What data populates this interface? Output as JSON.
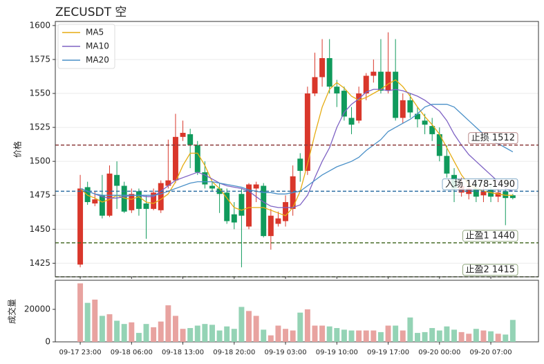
{
  "chart_data": [
    {
      "type": "candlestick",
      "title": "ZECUSDT  空",
      "ylabel": "价格",
      "categories": [
        "09-17 23:00",
        null,
        null,
        null,
        null,
        null,
        null,
        "09-18 06:00",
        null,
        null,
        null,
        null,
        null,
        null,
        "09-18 13:00",
        null,
        null,
        null,
        null,
        null,
        null,
        "09-18 20:00",
        null,
        null,
        null,
        null,
        null,
        null,
        "09-19 03:00",
        null,
        null,
        null,
        null,
        null,
        null,
        "09-19 10:00",
        null,
        null,
        null,
        null,
        null,
        null,
        "09-19 17:00",
        null,
        null,
        null,
        null,
        null,
        null,
        "09-20 00:00",
        null,
        null,
        null,
        null,
        null,
        null,
        "09-20 07:00",
        null,
        null,
        null
      ],
      "open": [
        1424,
        1481,
        1469,
        1475,
        1460,
        1490,
        1482,
        1464,
        1478,
        1469,
        1465,
        1464,
        1482,
        1486,
        1518,
        1520,
        1512,
        1492,
        1482,
        1480,
        1477,
        1461,
        1476,
        1452,
        1480,
        1482,
        1445,
        1454,
        1456,
        1465,
        1502,
        1493,
        1550,
        1562,
        1576,
        1555,
        1552,
        1532,
        1530,
        1550,
        1563,
        1566,
        1552,
        1566,
        1532,
        1545,
        1535,
        1530,
        1526,
        1520,
        1504,
        1490,
        1477,
        1476,
        1480,
        1475,
        1479,
        1474,
        1478,
        1475
      ],
      "high": [
        1490,
        1485,
        1478,
        1490,
        1497,
        1500,
        1485,
        1480,
        1480,
        1475,
        1480,
        1486,
        1516,
        1535,
        1530,
        1524,
        1515,
        1500,
        1485,
        1484,
        1480,
        1470,
        1480,
        1484,
        1485,
        1484,
        1465,
        1463,
        1475,
        1497,
        1506,
        1555,
        1580,
        1590,
        1590,
        1560,
        1555,
        1540,
        1555,
        1565,
        1575,
        1590,
        1595,
        1590,
        1550,
        1550,
        1540,
        1535,
        1532,
        1525,
        1512,
        1495,
        1488,
        1485,
        1485,
        1482,
        1484,
        1480,
        1480,
        1476
      ],
      "low": [
        1422,
        1468,
        1467,
        1458,
        1459,
        1465,
        1462,
        1462,
        1460,
        1443,
        1464,
        1462,
        1480,
        1484,
        1515,
        1495,
        1490,
        1480,
        1478,
        1462,
        1454,
        1450,
        1422,
        1450,
        1470,
        1444,
        1435,
        1452,
        1452,
        1460,
        1485,
        1490,
        1548,
        1555,
        1550,
        1540,
        1530,
        1520,
        1528,
        1545,
        1558,
        1550,
        1550,
        1530,
        1528,
        1532,
        1525,
        1520,
        1515,
        1500,
        1488,
        1470,
        1474,
        1472,
        1470,
        1470,
        1470,
        1470,
        1453,
        1472
      ],
      "close": [
        1480,
        1470,
        1472,
        1460,
        1491,
        1482,
        1463,
        1476,
        1465,
        1465,
        1477,
        1484,
        1486,
        1518,
        1521,
        1512,
        1492,
        1483,
        1480,
        1476,
        1456,
        1455,
        1460,
        1483,
        1483,
        1445,
        1460,
        1458,
        1470,
        1489,
        1493,
        1550,
        1562,
        1576,
        1555,
        1550,
        1533,
        1527,
        1550,
        1563,
        1566,
        1552,
        1566,
        1532,
        1545,
        1536,
        1531,
        1527,
        1520,
        1504,
        1491,
        1480,
        1482,
        1480,
        1474,
        1478,
        1474,
        1477,
        1473,
        1473
      ],
      "up_color": "#d9372b",
      "down_color": "#109a5c",
      "series": [
        {
          "name": "MA5",
          "color": "#e6ac12",
          "values": [
            1480,
            1475,
            1473,
            1470,
            1472,
            1475,
            1473,
            1472,
            1474,
            1470,
            1469,
            1472,
            1476,
            1485,
            1497,
            1506,
            1506,
            1497,
            1485,
            1480,
            1473,
            1466,
            1464,
            1466,
            1466,
            1466,
            1464,
            1462,
            1460,
            1466,
            1478,
            1498,
            1520,
            1540,
            1553,
            1558,
            1554,
            1548,
            1545,
            1547,
            1550,
            1553,
            1557,
            1560,
            1555,
            1548,
            1540,
            1533,
            1527,
            1520,
            1510,
            1500,
            1490,
            1483,
            1480,
            1478,
            1477,
            1476,
            1475,
            1475
          ]
        },
        {
          "name": "MA10",
          "color": "#7e62c4",
          "values": [
            1480,
            1478,
            1476,
            1474,
            1473,
            1473,
            1474,
            1475,
            1475,
            1474,
            1474,
            1478,
            1482,
            1486,
            1488,
            1490,
            1492,
            1490,
            1487,
            1484,
            1482,
            1481,
            1480,
            1478,
            1474,
            1470,
            1467,
            1466,
            1466,
            1466,
            1468,
            1475,
            1488,
            1500,
            1510,
            1525,
            1536,
            1542,
            1546,
            1551,
            1553,
            1553,
            1552,
            1553,
            1552,
            1550,
            1548,
            1545,
            1541,
            1537,
            1530,
            1520,
            1512,
            1505,
            1500,
            1495,
            1490,
            1485,
            1480,
            1478
          ]
        },
        {
          "name": "MA20",
          "color": "#4a90c8",
          "values": [
            1480,
            1478,
            1476,
            1475,
            1475,
            1475,
            1475,
            1475,
            1475,
            1475,
            1475,
            1476,
            1478,
            1480,
            1482,
            1484,
            1485,
            1485,
            1485,
            1484,
            1483,
            1482,
            1481,
            1479,
            1478,
            1477,
            1477,
            1476,
            1476,
            1477,
            1478,
            1482,
            1486,
            1490,
            1493,
            1496,
            1498,
            1500,
            1503,
            1508,
            1512,
            1516,
            1522,
            1525,
            1528,
            1531,
            1535,
            1540,
            1542,
            1542,
            1542,
            1540,
            1535,
            1530,
            1525,
            1520,
            1516,
            1513,
            1510,
            1507
          ]
        }
      ],
      "levels": [
        {
          "value": 1512,
          "label": "止损 1512",
          "color": "#8b3a3a"
        },
        {
          "value": 1478,
          "label": "入场 1478-1490",
          "color": "#2d6fa3"
        },
        {
          "value": 1440,
          "label": "止盈1 1440",
          "color": "#4a6e2a"
        },
        {
          "value": 1415,
          "label": "止盈2 1415",
          "color": "#4a6e2a"
        }
      ],
      "xlim": [
        -3.4,
        62.5
      ],
      "ylim": [
        1415,
        1603
      ],
      "yticks": [
        1425,
        1450,
        1475,
        1500,
        1525,
        1550,
        1575,
        1600
      ],
      "grid": true,
      "legend": "upper left"
    },
    {
      "type": "bar",
      "ylabel": "成交量",
      "values": [
        36000,
        24000,
        26000,
        16000,
        17000,
        13000,
        11000,
        12000,
        5500,
        11000,
        9000,
        12500,
        22500,
        16000,
        8000,
        8500,
        10000,
        11000,
        10500,
        7000,
        9500,
        8000,
        21500,
        19000,
        16000,
        7500,
        4000,
        10000,
        8000,
        7000,
        18000,
        20000,
        10000,
        10000,
        9500,
        8500,
        7500,
        7000,
        7000,
        7000,
        7000,
        6000,
        10000,
        10000,
        7000,
        15000,
        5500,
        6000,
        8500,
        7000,
        9500,
        7500,
        6000,
        5000,
        8000,
        7000,
        6500,
        5000,
        4500,
        13500
      ],
      "up_color": "#e8a3a0",
      "down_color": "#94d3b5",
      "ylim": [
        0,
        37900
      ],
      "yticks": [
        0,
        20000
      ]
    }
  ]
}
